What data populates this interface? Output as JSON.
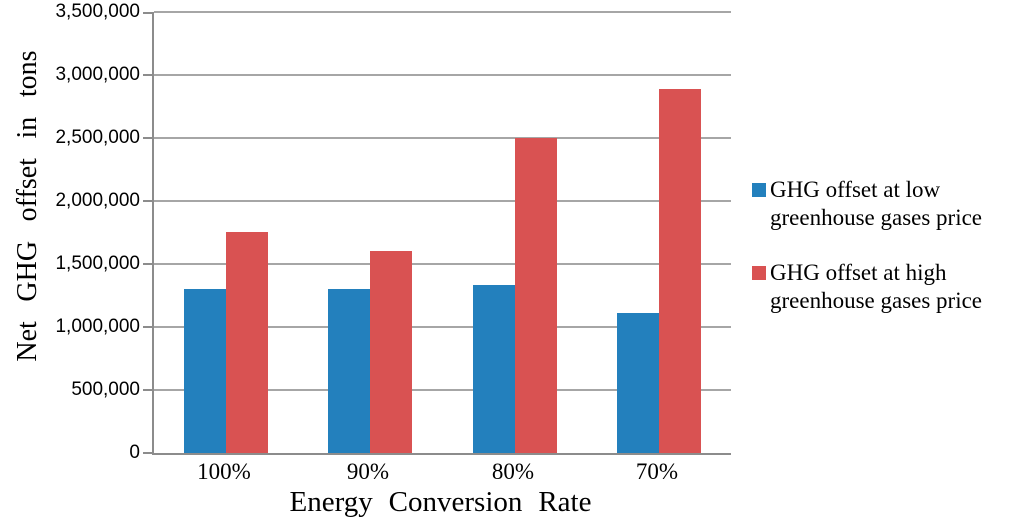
{
  "chart_data": {
    "type": "bar",
    "title": "",
    "categories": [
      "100%",
      "90%",
      "80%",
      "70%"
    ],
    "series": [
      {
        "name": "GHG offset at low greenhouse gases price",
        "color": "#2380bd",
        "values": [
          1300000,
          1300000,
          1330000,
          1110000
        ]
      },
      {
        "name": "GHG offset at high greenhouse gases price",
        "color": "#d95252",
        "values": [
          1750000,
          1600000,
          2500000,
          2890000
        ]
      }
    ],
    "xlabel": "Energy Conversion Rate",
    "ylabel": "Net GHG offset in tons",
    "ylim": [
      0,
      3500000
    ],
    "ytick_step": 500000,
    "ytick_labels": [
      "0",
      "500,000",
      "1,000,000",
      "1,500,000",
      "2,000,000",
      "2,500,000",
      "3,000,000",
      "3,500,000"
    ],
    "grid": true,
    "legend_position": "right",
    "legend": [
      {
        "label_lines": [
          "GHG offset at low",
          "greenhouse gases price"
        ],
        "color": "#2380bd"
      },
      {
        "label_lines": [
          "GHG offset at high",
          "greenhouse gases price"
        ],
        "color": "#d95252"
      }
    ]
  },
  "colors": {
    "background": "#ffffff",
    "gridline": "#a6a6a6",
    "axis": "#8c8c8c",
    "text": "#000000"
  }
}
